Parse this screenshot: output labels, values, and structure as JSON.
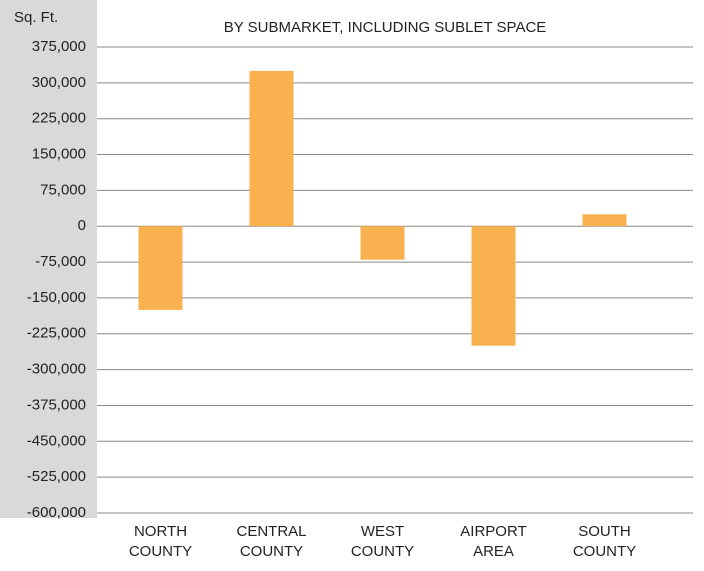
{
  "chart_data": {
    "type": "bar",
    "title": "BY SUBMARKET, INCLUDING SUBLET SPACE",
    "y_label": "Sq. Ft.",
    "categories": [
      "NORTH COUNTY",
      "CENTRAL COUNTY",
      "WEST COUNTY",
      "AIRPORT AREA",
      "SOUTH COUNTY"
    ],
    "values": [
      -175000,
      325000,
      -70000,
      -250000,
      25000
    ],
    "color": "#f9b04f",
    "ylim": [
      -600000,
      375000
    ],
    "yticks": [
      {
        "value": -600000,
        "label": "-600,000"
      },
      {
        "value": -525000,
        "label": "-525,000"
      },
      {
        "value": -450000,
        "label": "-450,000"
      },
      {
        "value": -375000,
        "label": "-375,000"
      },
      {
        "value": -300000,
        "label": "-300,000"
      },
      {
        "value": -225000,
        "label": "-225,000"
      },
      {
        "value": -150000,
        "label": "-150,000"
      },
      {
        "value": -75000,
        "label": "-75,000"
      },
      0,
      {
        "value": 75000,
        "label": "75,000"
      },
      {
        "value": 150000,
        "label": "150,000"
      },
      {
        "value": 225000,
        "label": "225,000"
      },
      {
        "value": 300000,
        "label": "300,000"
      },
      {
        "value": 375000,
        "label": "375,000"
      }
    ],
    "grid": true
  }
}
